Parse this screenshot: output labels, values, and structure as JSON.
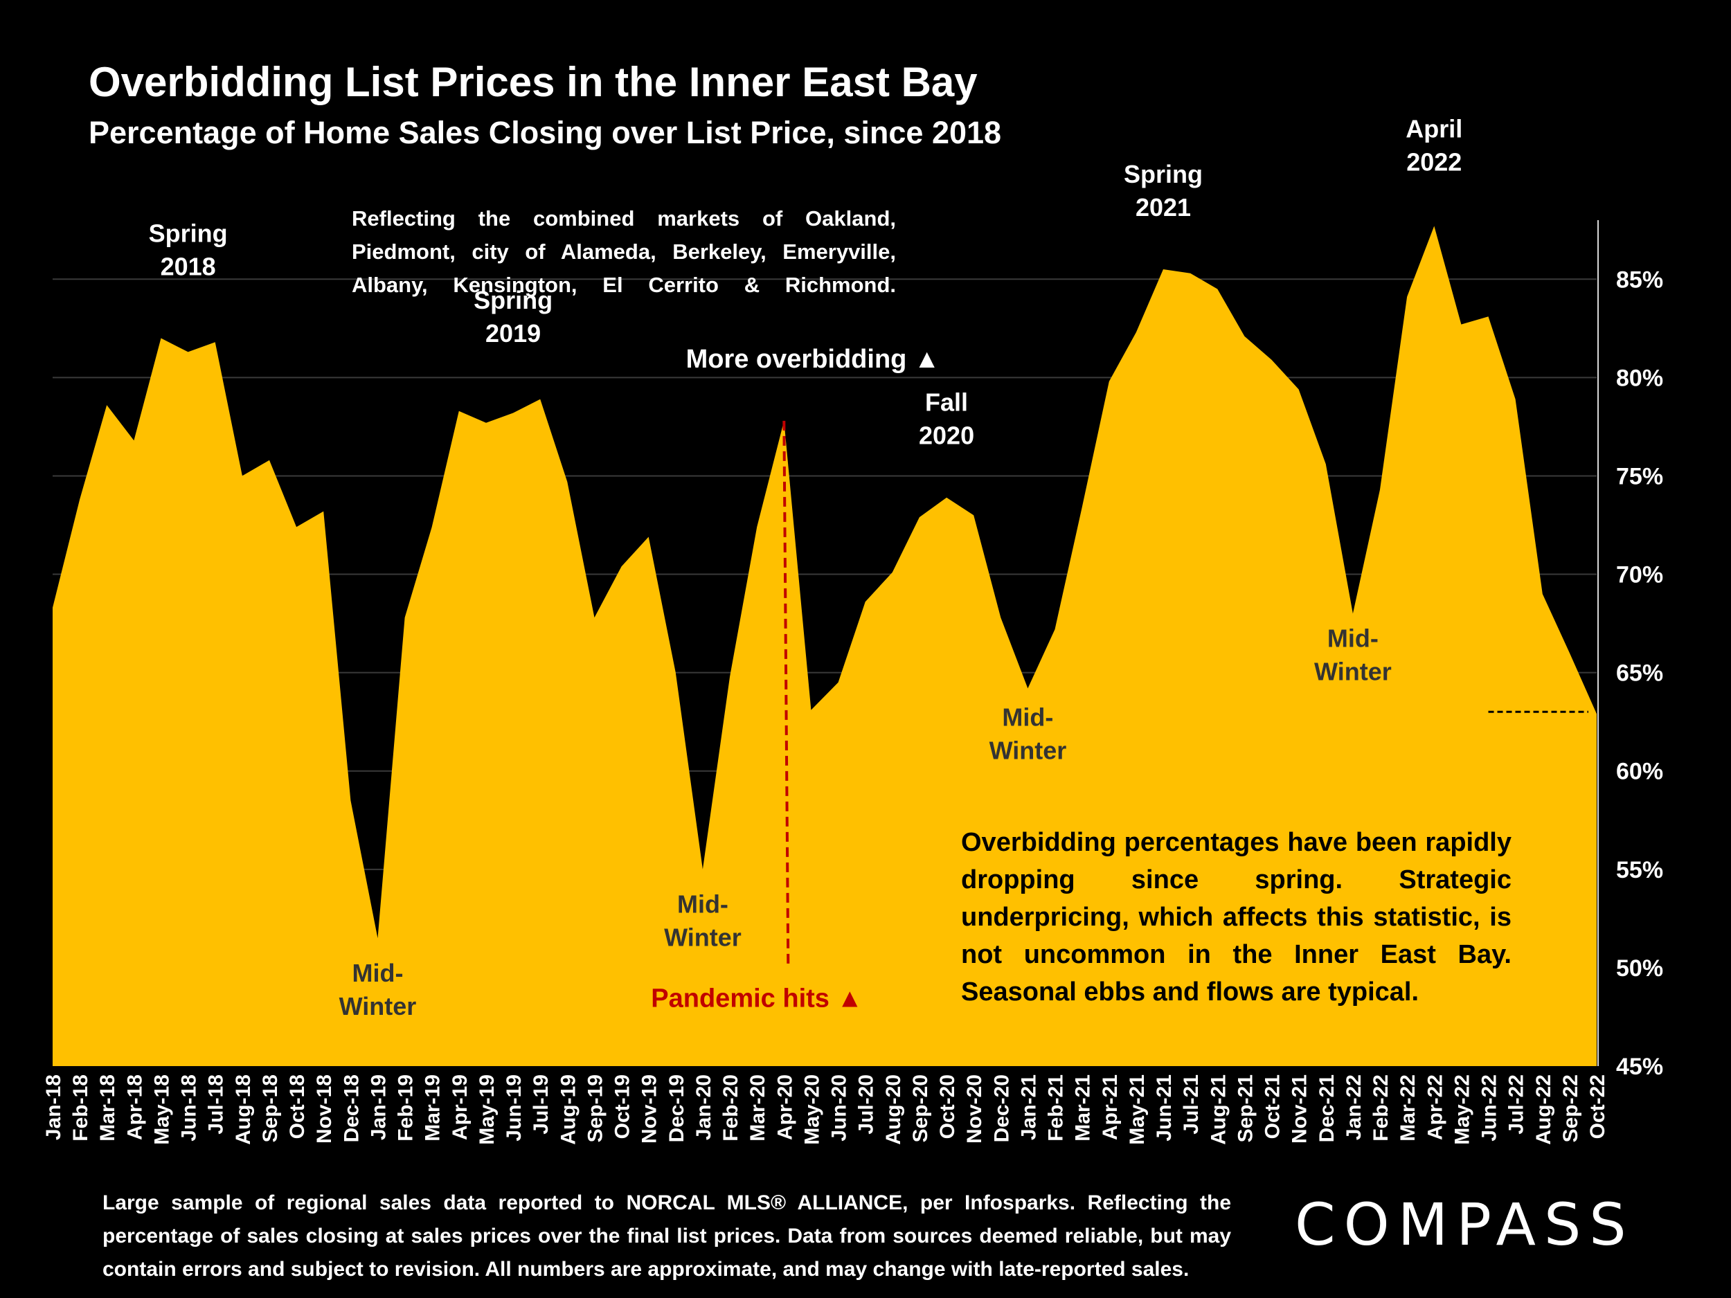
{
  "title": "Overbidding List Prices in the Inner East Bay",
  "subtitle": "Percentage of Home Sales Closing over List Price, since 2018",
  "note": "Reflecting the combined markets of Oakland, Piedmont, city of Alameda, Berkeley, Emeryville, Albany, Kensington, El Cerrito & Richmond.",
  "insight": "Overbidding percentages have been rapidly dropping since spring. Strategic underpricing, which affects this statistic, is not uncommon in the Inner East Bay. Seasonal ebbs and flows are typical.",
  "footnote": "Large sample of regional sales data reported to NORCAL MLS® ALLIANCE, per Infosparks. Reflecting the percentage of sales closing at sales prices over the final list prices. Data from sources deemed reliable, but may contain errors and subject to revision. All numbers are approximate, and may change with late-reported sales.",
  "brand": "COMPASS",
  "colors": {
    "area": "#FFC000",
    "background": "#000000",
    "pandemic": "#C00000"
  },
  "chart_data": {
    "type": "area",
    "yaxis_position": "right",
    "ylim": [
      45,
      88
    ],
    "yticks": [
      45,
      50,
      55,
      60,
      65,
      70,
      75,
      80,
      85
    ],
    "ytick_labels": [
      "45%",
      "50%",
      "55%",
      "60%",
      "65%",
      "70%",
      "75%",
      "80%",
      "85%"
    ],
    "grid": true,
    "categories": [
      "Jan-18",
      "Feb-18",
      "Mar-18",
      "Apr-18",
      "May-18",
      "Jun-18",
      "Jul-18",
      "Aug-18",
      "Sep-18",
      "Oct-18",
      "Nov-18",
      "Dec-18",
      "Jan-19",
      "Feb-19",
      "Mar-19",
      "Apr-19",
      "May-19",
      "Jun-19",
      "Jul-19",
      "Aug-19",
      "Sep-19",
      "Oct-19",
      "Nov-19",
      "Dec-19",
      "Jan-20",
      "Feb-20",
      "Mar-20",
      "Apr-20",
      "May-20",
      "Jun-20",
      "Jul-20",
      "Aug-20",
      "Sep-20",
      "Oct-20",
      "Nov-20",
      "Dec-20",
      "Jan-21",
      "Feb-21",
      "Mar-21",
      "Apr-21",
      "May-21",
      "Jun-21",
      "Jul-21",
      "Aug-21",
      "Sep-21",
      "Oct-21",
      "Nov-21",
      "Dec-21",
      "Jan-22",
      "Feb-22",
      "Mar-22",
      "Apr-22",
      "May-22",
      "Jun-22",
      "Jul-22",
      "Aug-22",
      "Sep-22",
      "Oct-22"
    ],
    "values": [
      68.3,
      73.8,
      78.6,
      76.8,
      82.0,
      81.3,
      81.8,
      75.0,
      75.8,
      72.4,
      73.2,
      58.5,
      51.5,
      67.8,
      72.4,
      78.3,
      77.7,
      78.2,
      78.9,
      74.7,
      67.8,
      70.4,
      71.9,
      65.0,
      55.0,
      64.8,
      72.4,
      77.8,
      63.1,
      64.5,
      68.6,
      70.1,
      72.9,
      73.9,
      73.0,
      67.8,
      64.2,
      67.2,
      73.4,
      79.8,
      82.3,
      85.5,
      85.3,
      84.5,
      82.1,
      80.9,
      79.4,
      75.6,
      68.0,
      74.3,
      84.1,
      87.7,
      82.7,
      83.1,
      78.9,
      69.0,
      66.0,
      62.9
    ],
    "annotations": [
      {
        "lines": [
          "Spring",
          "2018"
        ],
        "x": "Jun-18",
        "y": 86.9,
        "color": "#FFFFFF"
      },
      {
        "lines": [
          "Spring",
          "2019"
        ],
        "x": "Jun-19",
        "y": 83.5,
        "color": "#FFFFFF"
      },
      {
        "lines": [
          "Fall",
          "2020"
        ],
        "x": "Oct-20",
        "y": 78.3,
        "color": "#FFFFFF"
      },
      {
        "lines": [
          "Spring",
          "2021"
        ],
        "x": "Jun-21",
        "y": 89.9,
        "color": "#FFFFFF"
      },
      {
        "lines": [
          "April",
          "2022"
        ],
        "x": "Apr-22",
        "y": 92.2,
        "color": "#FFFFFF"
      },
      {
        "lines": [
          "Mid-",
          "Winter"
        ],
        "x": "Jan-19",
        "y": 49.3,
        "color": "#333333"
      },
      {
        "lines": [
          "Mid-",
          "Winter"
        ],
        "x": "Jan-20",
        "y": 52.8,
        "color": "#333333"
      },
      {
        "lines": [
          "Mid-",
          "Winter"
        ],
        "x": "Jan-21",
        "y": 62.3,
        "color": "#333333"
      },
      {
        "lines": [
          "Mid-",
          "Winter"
        ],
        "x": "Jan-22",
        "y": 66.3,
        "color": "#333333"
      },
      {
        "lines": [
          "More overbidding ▲"
        ],
        "x": "Feb-20",
        "y": 80.5,
        "color": "#FFFFFF"
      },
      {
        "lines": [
          "Pandemic hits ▲"
        ],
        "x": "Mar-20",
        "y": 48.0,
        "color": "#C00000"
      }
    ],
    "reference_lines": [
      {
        "style": "dashed-vertical",
        "x": "Apr-20",
        "from": 50.1,
        "to": 77.8,
        "color": "#C00000"
      },
      {
        "style": "dashed-horizontal",
        "y": 62.9,
        "from": "Jun-22",
        "to": "Oct-22",
        "color": "#000000"
      }
    ]
  }
}
